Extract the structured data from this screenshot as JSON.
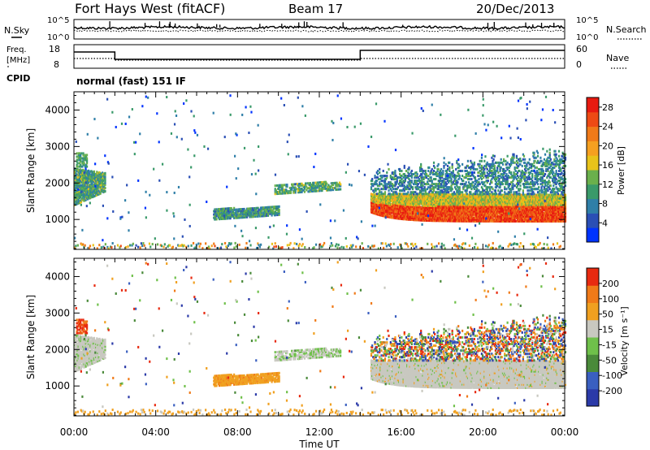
{
  "header": {
    "station": "Fort Hays West (fitACF)",
    "beam": "Beam 17",
    "date": "20/Dec/2013"
  },
  "noise_panel": {
    "left_label": "N.Sky",
    "right_label": "N.Search",
    "left_ticks": [
      "10^5",
      "10^0"
    ],
    "right_ticks": [
      "10^5",
      "10^0"
    ]
  },
  "freq_panel": {
    "left_label_1": "Freq.",
    "left_label_2": "[MHz]",
    "left_ticks": [
      "18",
      "8"
    ],
    "right_label": "Nave",
    "right_ticks": [
      "60",
      "0"
    ],
    "cpid_label": "CPID",
    "mode_text": "normal (fast) 151 IF"
  },
  "chart_data": [
    {
      "type": "heatmap",
      "panel": "power",
      "ylabel": "Slant Range [km]",
      "ylim": [
        180,
        4500
      ],
      "y_ticks": [
        "1000",
        "2000",
        "3000",
        "4000"
      ],
      "xlim": [
        "00:00",
        "24:00"
      ],
      "colorbar_label": "Power [dB]",
      "colorbar_ticks": [
        "4",
        "8",
        "12",
        "16",
        "20",
        "24",
        "28"
      ],
      "colorbar_range": [
        0,
        30
      ],
      "colorbar_colors": [
        "#0033ff",
        "#2a4fb5",
        "#2f7fa8",
        "#3a9a6a",
        "#6ab04c",
        "#e8c31a",
        "#f5a020",
        "#f07a18",
        "#ee4a14",
        "#e81a10"
      ]
    },
    {
      "type": "heatmap",
      "panel": "velocity",
      "ylabel": "Slant Range [km]",
      "ylim": [
        180,
        4500
      ],
      "y_ticks": [
        "1000",
        "2000",
        "3000",
        "4000"
      ],
      "xlim": [
        "00:00",
        "24:00"
      ],
      "colorbar_label": "Velocity [m s⁻¹]",
      "colorbar_ticks": [
        "200",
        "100",
        "50",
        "15",
        "-15",
        "-50",
        "-100",
        "-200"
      ],
      "colorbar_colors": [
        "#2b3aa8",
        "#3a5fc0",
        "#4a8a3a",
        "#6fc04a",
        "#c8c8c0",
        "#f0a020",
        "#f07a18",
        "#e82a10"
      ]
    }
  ],
  "x_axis": {
    "ticks": [
      "00:00",
      "04:00",
      "08:00",
      "12:00",
      "16:00",
      "20:00",
      "00:00"
    ],
    "label": "Time UT"
  }
}
